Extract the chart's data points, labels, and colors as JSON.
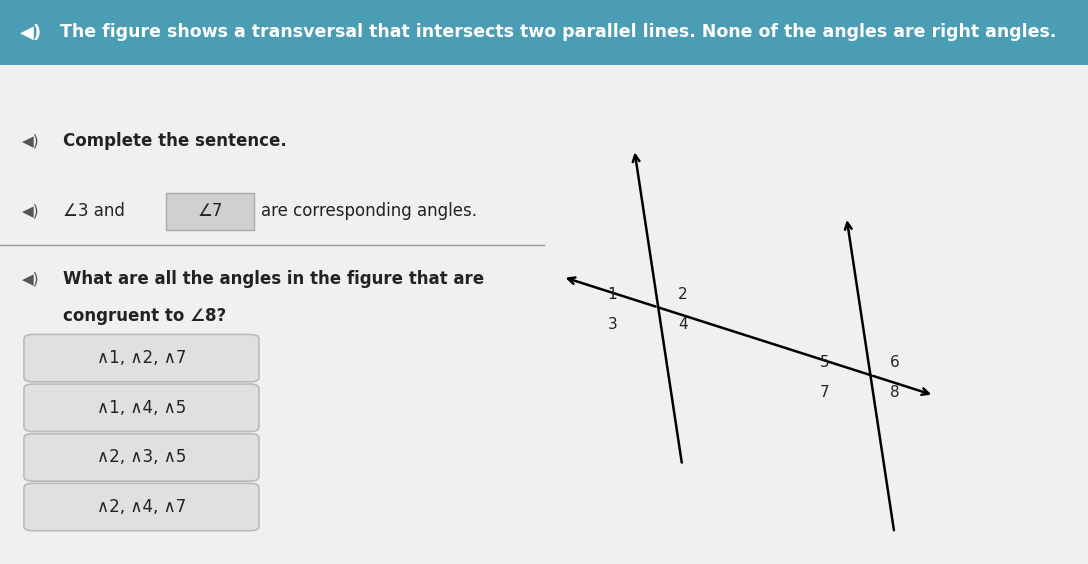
{
  "header_text": "The figure shows a transversal that intersects two parallel lines. None of the angles are right angles.",
  "header_bg": "#4a9db5",
  "header_text_color": "#ffffff",
  "bg_color": "#f0f0f0",
  "answer_boxes": [
    "∧1, ∧2, ∧7",
    "∧1, ∧4, ∧5",
    "∧2, ∧3, ∧5",
    "∧2, ∧4, ∧7"
  ],
  "answer_box_bg": "#e0e0e0",
  "answer_box_border": "#bbbbbb",
  "divider_color": "#999999",
  "text_color": "#222222",
  "fig_width": 10.88,
  "fig_height": 5.64
}
